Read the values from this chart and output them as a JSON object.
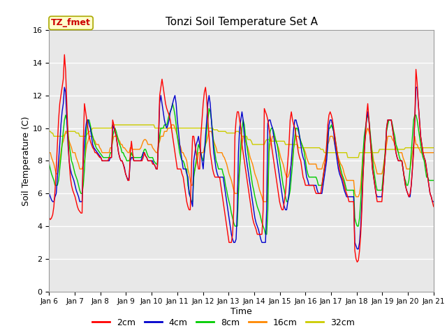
{
  "title": "Tonzi Soil Temperature Set A",
  "xlabel": "Time",
  "ylabel": "Soil Temperature (C)",
  "ylim": [
    0,
    16
  ],
  "yticks": [
    0,
    2,
    4,
    6,
    8,
    10,
    12,
    14,
    16
  ],
  "annotation_label": "TZ_fmet",
  "annotation_color": "#cc0000",
  "annotation_bg": "#ffffcc",
  "annotation_border": "#aaa800",
  "colors": {
    "2cm": "#ff0000",
    "4cm": "#0000cc",
    "8cm": "#00cc00",
    "16cm": "#ff8800",
    "32cm": "#cccc00"
  },
  "bg_color": "#e8e8e8",
  "x_tick_labels": [
    "Jan 6",
    "Jan 7",
    "Jan 8",
    "Jan 9",
    "Jan 10",
    "Jan 11",
    "Jan 12",
    "Jan 13",
    "Jan 14",
    "Jan 15",
    "Jan 16",
    "Jan 17",
    "Jan 18",
    "Jan 19",
    "Jan 20",
    "Jan 21"
  ],
  "series": {
    "2cm": [
      4.5,
      4.4,
      4.5,
      4.7,
      5.2,
      6.2,
      7.5,
      9.0,
      10.5,
      11.5,
      12.0,
      12.5,
      13.0,
      14.5,
      13.5,
      11.5,
      9.5,
      8.0,
      7.0,
      6.5,
      6.2,
      6.0,
      5.8,
      5.5,
      5.2,
      5.0,
      4.9,
      4.8,
      4.8,
      9.0,
      11.5,
      11.0,
      10.5,
      10.0,
      9.5,
      9.2,
      9.0,
      8.8,
      8.7,
      8.5,
      8.5,
      8.4,
      8.3,
      8.2,
      8.2,
      8.0,
      8.0,
      8.0,
      8.0,
      8.0,
      8.0,
      8.2,
      8.2,
      8.2,
      10.5,
      10.2,
      9.8,
      9.5,
      9.0,
      8.5,
      8.2,
      8.0,
      8.0,
      7.8,
      7.5,
      7.2,
      7.0,
      6.8,
      6.8,
      8.5,
      9.2,
      8.5,
      8.0,
      8.0,
      8.0,
      8.0,
      8.0,
      8.0,
      8.0,
      8.0,
      8.2,
      8.5,
      8.3,
      8.2,
      8.0,
      8.0,
      8.0,
      8.0,
      7.8,
      7.8,
      7.7,
      7.5,
      7.5,
      9.5,
      12.0,
      12.5,
      13.0,
      12.5,
      12.0,
      11.5,
      11.2,
      11.0,
      10.8,
      10.5,
      10.0,
      9.5,
      9.0,
      8.5,
      8.0,
      7.5,
      7.5,
      7.5,
      7.5,
      7.2,
      7.0,
      6.5,
      6.0,
      5.5,
      5.2,
      5.0,
      5.0,
      7.5,
      9.5,
      9.5,
      9.0,
      8.5,
      8.0,
      7.5,
      7.5,
      9.5,
      10.5,
      11.5,
      12.2,
      12.5,
      11.8,
      10.5,
      9.5,
      8.5,
      8.0,
      7.5,
      7.2,
      7.0,
      7.0,
      7.0,
      7.0,
      7.0,
      6.5,
      6.0,
      5.5,
      5.0,
      4.5,
      4.0,
      3.5,
      3.0,
      3.0,
      3.0,
      3.5,
      5.0,
      9.5,
      10.5,
      11.0,
      11.0,
      10.5,
      10.0,
      9.0,
      8.5,
      8.0,
      7.5,
      7.0,
      6.5,
      6.0,
      5.5,
      5.0,
      4.5,
      4.2,
      4.0,
      3.8,
      3.5,
      3.5,
      3.5,
      3.5,
      3.5,
      5.0,
      11.2,
      11.0,
      10.8,
      10.5,
      10.0,
      9.5,
      9.0,
      8.5,
      8.0,
      7.5,
      7.0,
      6.5,
      6.0,
      5.5,
      5.2,
      5.0,
      5.0,
      5.5,
      6.0,
      7.0,
      8.0,
      9.0,
      10.5,
      11.0,
      10.5,
      10.2,
      10.0,
      9.5,
      9.0,
      8.5,
      8.2,
      8.0,
      7.5,
      7.0,
      6.8,
      6.5,
      6.5,
      6.5,
      6.5,
      6.5,
      6.5,
      6.5,
      6.5,
      6.2,
      6.0,
      6.0,
      6.0,
      6.0,
      6.0,
      6.5,
      7.0,
      7.5,
      8.0,
      9.0,
      10.2,
      10.8,
      11.0,
      10.8,
      10.5,
      10.0,
      9.5,
      9.0,
      8.5,
      8.0,
      7.5,
      7.2,
      7.0,
      6.8,
      6.5,
      6.2,
      6.0,
      5.8,
      5.5,
      5.5,
      5.5,
      5.5,
      5.5,
      2.5,
      2.0,
      1.8,
      1.9,
      2.5,
      3.5,
      5.0,
      7.0,
      8.5,
      9.5,
      10.8,
      11.5,
      10.5,
      9.5,
      8.5,
      7.5,
      7.0,
      6.5,
      6.0,
      5.5,
      5.5,
      5.5,
      5.5,
      5.5,
      6.5,
      7.5,
      8.5,
      10.0,
      10.5,
      10.5,
      10.5,
      10.5,
      10.0,
      9.5,
      9.0,
      8.5,
      8.2,
      8.0,
      8.0,
      8.0,
      8.0,
      7.5,
      7.0,
      6.5,
      6.2,
      6.0,
      5.8,
      6.0,
      6.5,
      7.5,
      8.5,
      10.5,
      13.6,
      12.8,
      11.5,
      10.5,
      9.5,
      9.0,
      8.5,
      8.2,
      8.0,
      7.5,
      7.0,
      6.5,
      6.0,
      5.8,
      5.5,
      5.2
    ],
    "4cm": [
      6.0,
      5.8,
      5.6,
      5.5,
      5.5,
      5.8,
      6.0,
      7.0,
      8.0,
      9.0,
      10.2,
      11.0,
      11.5,
      12.5,
      12.2,
      10.5,
      9.0,
      8.0,
      7.5,
      7.2,
      7.0,
      6.8,
      6.5,
      6.2,
      6.0,
      5.8,
      5.5,
      5.5,
      5.5,
      8.0,
      9.0,
      10.0,
      10.5,
      10.5,
      10.2,
      10.0,
      9.5,
      9.0,
      8.8,
      8.7,
      8.6,
      8.5,
      8.4,
      8.3,
      8.2,
      8.0,
      8.0,
      8.0,
      8.0,
      8.0,
      8.0,
      8.0,
      8.2,
      8.2,
      10.2,
      10.0,
      9.8,
      9.5,
      9.0,
      8.5,
      8.2,
      8.0,
      8.0,
      7.8,
      7.6,
      7.2,
      7.0,
      6.8,
      7.0,
      8.0,
      8.2,
      8.2,
      8.0,
      8.0,
      8.0,
      8.0,
      8.0,
      8.0,
      8.0,
      8.2,
      8.5,
      8.5,
      8.3,
      8.2,
      8.0,
      8.0,
      8.0,
      8.0,
      8.0,
      7.8,
      7.7,
      7.5,
      7.5,
      9.2,
      11.5,
      12.0,
      11.5,
      11.0,
      10.5,
      10.2,
      10.0,
      10.2,
      10.5,
      11.0,
      11.2,
      11.5,
      11.8,
      12.0,
      11.5,
      10.5,
      9.8,
      9.0,
      8.5,
      8.0,
      7.5,
      7.5,
      7.5,
      7.2,
      7.0,
      6.0,
      5.8,
      5.5,
      5.2,
      8.0,
      8.5,
      9.0,
      9.2,
      9.5,
      9.0,
      8.5,
      8.0,
      7.5,
      8.5,
      9.5,
      10.5,
      11.5,
      12.0,
      11.5,
      10.5,
      9.5,
      8.5,
      8.0,
      7.5,
      7.2,
      7.0,
      7.0,
      7.0,
      7.0,
      7.0,
      6.5,
      6.0,
      5.5,
      5.0,
      4.5,
      4.0,
      3.5,
      3.2,
      3.0,
      3.0,
      3.2,
      5.0,
      8.5,
      10.0,
      10.5,
      11.0,
      10.5,
      9.5,
      8.5,
      8.0,
      7.5,
      7.0,
      6.5,
      6.0,
      5.5,
      5.0,
      4.5,
      4.2,
      4.0,
      3.8,
      3.5,
      3.2,
      3.0,
      3.0,
      3.0,
      3.0,
      5.0,
      10.3,
      10.5,
      10.5,
      10.2,
      10.0,
      9.5,
      9.0,
      8.5,
      8.0,
      7.5,
      7.0,
      6.5,
      6.0,
      5.5,
      5.2,
      5.0,
      5.0,
      5.5,
      6.0,
      7.0,
      8.0,
      9.0,
      10.0,
      10.5,
      10.5,
      10.2,
      10.0,
      9.5,
      9.0,
      8.5,
      8.2,
      8.0,
      7.5,
      7.0,
      6.8,
      6.5,
      6.5,
      6.5,
      6.5,
      6.5,
      6.5,
      6.5,
      6.2,
      6.0,
      6.0,
      6.0,
      6.0,
      6.5,
      7.0,
      7.5,
      8.0,
      9.0,
      10.2,
      10.5,
      10.5,
      10.2,
      9.8,
      9.0,
      8.5,
      8.0,
      7.5,
      7.2,
      7.0,
      6.8,
      6.5,
      6.2,
      6.0,
      5.8,
      5.8,
      5.8,
      5.8,
      5.8,
      5.8,
      5.8,
      3.0,
      2.8,
      2.6,
      2.6,
      3.0,
      4.0,
      5.5,
      7.2,
      8.5,
      9.8,
      10.5,
      11.0,
      10.5,
      9.5,
      8.5,
      7.5,
      7.0,
      6.5,
      6.0,
      5.8,
      5.8,
      5.8,
      5.8,
      5.8,
      6.5,
      7.5,
      8.5,
      10.0,
      10.5,
      10.5,
      10.5,
      10.5,
      10.0,
      9.5,
      9.0,
      8.5,
      8.2,
      8.0,
      8.0,
      8.0,
      8.0,
      7.5,
      7.0,
      6.5,
      6.2,
      6.0,
      5.8,
      5.8,
      6.5,
      7.5,
      8.8,
      10.5,
      12.5,
      12.5,
      11.5,
      10.5,
      9.5,
      9.0,
      8.5,
      8.2,
      8.0,
      7.5,
      7.0,
      6.5,
      6.0,
      5.8,
      5.5,
      5.5
    ],
    "8cm": [
      7.8,
      7.5,
      7.2,
      7.0,
      6.8,
      6.5,
      6.5,
      6.5,
      6.8,
      7.5,
      8.2,
      9.0,
      9.8,
      10.5,
      10.8,
      10.5,
      9.8,
      9.0,
      8.5,
      8.0,
      7.8,
      7.5,
      7.2,
      7.0,
      6.8,
      6.5,
      6.2,
      6.0,
      6.0,
      6.5,
      7.5,
      9.0,
      10.0,
      10.5,
      10.5,
      10.2,
      9.8,
      9.5,
      9.2,
      9.0,
      8.8,
      8.7,
      8.6,
      8.5,
      8.4,
      8.3,
      8.2,
      8.2,
      8.2,
      8.2,
      8.2,
      8.2,
      8.5,
      8.5,
      9.5,
      9.8,
      10.0,
      9.8,
      9.5,
      9.2,
      9.0,
      8.8,
      8.5,
      8.5,
      8.3,
      8.2,
      8.0,
      8.0,
      8.0,
      8.2,
      8.5,
      8.3,
      8.2,
      8.2,
      8.2,
      8.2,
      8.2,
      8.2,
      8.2,
      8.3,
      8.5,
      8.7,
      8.7,
      8.5,
      8.3,
      8.2,
      8.2,
      8.2,
      8.2,
      8.0,
      7.9,
      7.8,
      7.8,
      9.0,
      9.5,
      10.0,
      10.0,
      10.0,
      10.2,
      10.2,
      10.2,
      10.5,
      10.8,
      11.0,
      11.2,
      11.5,
      11.2,
      10.8,
      10.2,
      9.5,
      9.0,
      8.5,
      8.2,
      8.0,
      8.0,
      7.8,
      7.5,
      7.5,
      6.5,
      6.2,
      5.8,
      5.5,
      5.5,
      7.0,
      7.5,
      8.0,
      8.5,
      9.0,
      8.8,
      8.5,
      8.2,
      8.0,
      8.5,
      9.0,
      9.8,
      10.5,
      11.2,
      11.0,
      10.5,
      9.8,
      9.0,
      8.5,
      8.0,
      7.8,
      7.5,
      7.5,
      7.5,
      7.5,
      7.2,
      7.0,
      6.5,
      6.2,
      5.8,
      5.5,
      5.2,
      4.8,
      4.5,
      4.2,
      4.0,
      4.0,
      4.0,
      6.0,
      7.5,
      9.0,
      10.0,
      10.5,
      10.2,
      9.5,
      9.0,
      8.5,
      8.0,
      7.5,
      7.0,
      6.5,
      6.2,
      5.8,
      5.5,
      5.2,
      5.0,
      4.8,
      4.5,
      4.2,
      4.0,
      3.8,
      3.5,
      3.5,
      5.0,
      9.0,
      9.8,
      10.0,
      10.0,
      9.8,
      9.5,
      9.2,
      9.0,
      8.5,
      8.0,
      7.5,
      7.0,
      6.5,
      6.2,
      5.8,
      5.5,
      5.5,
      5.8,
      6.2,
      7.0,
      7.8,
      8.8,
      9.5,
      10.0,
      10.0,
      9.8,
      9.5,
      9.2,
      9.0,
      8.8,
      8.5,
      8.0,
      7.5,
      7.2,
      7.0,
      7.0,
      7.0,
      7.0,
      7.0,
      7.0,
      7.0,
      6.8,
      6.5,
      6.5,
      6.5,
      6.5,
      7.0,
      7.5,
      8.0,
      8.5,
      9.5,
      10.0,
      10.0,
      10.2,
      10.0,
      9.8,
      9.5,
      9.0,
      8.5,
      8.0,
      7.8,
      7.5,
      7.2,
      7.0,
      6.8,
      6.5,
      6.2,
      6.2,
      6.2,
      6.2,
      6.2,
      6.2,
      6.2,
      4.5,
      4.2,
      4.0,
      4.0,
      4.5,
      5.5,
      7.0,
      8.5,
      9.5,
      10.0,
      10.5,
      10.8,
      10.5,
      9.8,
      9.0,
      8.2,
      7.5,
      7.0,
      6.5,
      6.2,
      6.2,
      6.2,
      6.2,
      6.2,
      7.0,
      7.8,
      8.8,
      9.8,
      10.2,
      10.5,
      10.5,
      10.5,
      10.2,
      9.8,
      9.5,
      9.0,
      8.8,
      8.5,
      8.2,
      8.0,
      8.0,
      7.5,
      7.0,
      6.8,
      6.5,
      6.5,
      6.8,
      7.5,
      8.5,
      9.5,
      10.5,
      10.8,
      10.8,
      10.5,
      10.0,
      9.5,
      9.0,
      8.5,
      8.2,
      8.0,
      7.5,
      7.0,
      7.0,
      6.8,
      6.8,
      6.8,
      6.8,
      6.8
    ],
    "16cm": [
      8.5,
      8.5,
      8.2,
      8.0,
      7.8,
      7.5,
      7.2,
      7.2,
      7.5,
      8.0,
      8.5,
      9.0,
      9.2,
      9.5,
      9.8,
      9.8,
      9.5,
      9.2,
      9.0,
      8.8,
      8.5,
      8.5,
      8.5,
      8.2,
      8.0,
      7.8,
      7.5,
      7.5,
      7.5,
      7.8,
      8.0,
      8.5,
      9.0,
      9.2,
      9.5,
      9.5,
      9.5,
      9.5,
      9.3,
      9.2,
      9.0,
      9.0,
      9.0,
      8.8,
      8.7,
      8.5,
      8.5,
      8.5,
      8.5,
      8.5,
      8.5,
      8.5,
      8.8,
      8.8,
      9.2,
      9.5,
      9.5,
      9.5,
      9.5,
      9.3,
      9.2,
      9.0,
      9.0,
      8.8,
      8.8,
      8.7,
      8.6,
      8.5,
      8.5,
      8.8,
      8.8,
      8.7,
      8.7,
      8.7,
      8.7,
      8.7,
      8.7,
      8.7,
      8.8,
      9.0,
      9.2,
      9.3,
      9.3,
      9.2,
      9.0,
      9.0,
      9.0,
      9.0,
      8.8,
      8.7,
      8.6,
      8.5,
      8.5,
      9.0,
      9.2,
      9.5,
      9.5,
      9.5,
      9.8,
      9.8,
      9.8,
      10.0,
      10.0,
      10.0,
      10.2,
      10.2,
      10.2,
      10.0,
      9.8,
      9.5,
      9.2,
      9.0,
      8.8,
      8.5,
      8.5,
      8.3,
      8.2,
      8.0,
      7.5,
      7.2,
      6.8,
      6.5,
      6.5,
      7.2,
      7.5,
      7.8,
      8.0,
      8.5,
      8.5,
      8.5,
      8.5,
      8.5,
      8.8,
      9.0,
      9.2,
      9.5,
      9.8,
      9.8,
      9.8,
      9.5,
      9.2,
      9.0,
      8.8,
      8.5,
      8.5,
      8.5,
      8.5,
      8.5,
      8.3,
      8.2,
      8.0,
      7.8,
      7.5,
      7.2,
      7.0,
      6.8,
      6.5,
      6.2,
      6.0,
      6.0,
      6.0,
      7.0,
      7.5,
      8.5,
      9.0,
      9.5,
      9.5,
      9.2,
      9.0,
      8.8,
      8.5,
      8.2,
      8.0,
      7.8,
      7.5,
      7.2,
      7.0,
      6.8,
      6.5,
      6.2,
      6.0,
      5.8,
      5.5,
      5.5,
      5.5,
      5.5,
      6.5,
      8.5,
      9.0,
      9.2,
      9.5,
      9.5,
      9.3,
      9.2,
      9.0,
      8.8,
      8.5,
      8.2,
      8.0,
      7.8,
      7.5,
      7.2,
      7.0,
      7.0,
      7.2,
      7.5,
      7.8,
      8.2,
      8.8,
      9.2,
      9.5,
      9.5,
      9.5,
      9.3,
      9.2,
      9.0,
      8.8,
      8.7,
      8.5,
      8.2,
      8.0,
      7.8,
      7.8,
      7.8,
      7.8,
      7.8,
      7.8,
      7.8,
      7.5,
      7.5,
      7.5,
      7.5,
      7.5,
      7.8,
      8.0,
      8.3,
      8.5,
      9.0,
      9.2,
      9.5,
      9.5,
      9.5,
      9.3,
      9.0,
      8.8,
      8.5,
      8.2,
      8.0,
      7.8,
      7.7,
      7.5,
      7.2,
      7.0,
      6.8,
      6.8,
      6.8,
      6.8,
      6.8,
      6.8,
      6.8,
      6.0,
      5.8,
      5.8,
      5.8,
      6.0,
      6.5,
      7.5,
      8.5,
      9.0,
      9.5,
      9.8,
      10.0,
      9.8,
      9.5,
      9.0,
      8.5,
      8.0,
      7.8,
      7.5,
      7.2,
      7.2,
      7.2,
      7.2,
      7.2,
      7.5,
      8.0,
      8.5,
      9.0,
      9.5,
      9.5,
      9.5,
      9.5,
      9.3,
      9.2,
      9.0,
      8.8,
      8.7,
      8.5,
      8.5,
      8.5,
      8.5,
      8.2,
      8.0,
      7.8,
      7.5,
      7.5,
      7.5,
      7.5,
      8.0,
      8.5,
      9.0,
      9.5,
      9.0,
      9.0,
      8.8,
      8.7,
      8.5,
      8.5,
      8.5,
      8.5,
      8.5,
      8.5,
      8.5,
      8.5,
      8.5,
      8.5,
      8.5,
      8.5
    ],
    "32cm": [
      9.8,
      9.8,
      9.7,
      9.7,
      9.5,
      9.5,
      9.5,
      9.5,
      9.5,
      9.5,
      9.5,
      9.5,
      9.5,
      9.6,
      9.7,
      9.7,
      9.8,
      9.8,
      9.8,
      9.8,
      9.8,
      9.8,
      9.8,
      9.7,
      9.7,
      9.7,
      9.5,
      9.5,
      9.5,
      9.5,
      9.5,
      9.5,
      9.6,
      9.7,
      9.8,
      9.8,
      9.9,
      10.0,
      10.0,
      10.0,
      10.0,
      10.0,
      10.0,
      10.0,
      10.0,
      10.0,
      10.0,
      10.0,
      10.0,
      10.0,
      10.0,
      10.0,
      10.0,
      10.0,
      10.2,
      10.2,
      10.2,
      10.2,
      10.2,
      10.2,
      10.2,
      10.2,
      10.2,
      10.2,
      10.2,
      10.2,
      10.2,
      10.2,
      10.2,
      10.2,
      10.2,
      10.2,
      10.2,
      10.2,
      10.2,
      10.2,
      10.2,
      10.2,
      10.2,
      10.2,
      10.2,
      10.2,
      10.2,
      10.2,
      10.2,
      10.2,
      10.2,
      10.2,
      10.2,
      10.2,
      10.0,
      10.0,
      10.0,
      10.0,
      10.0,
      10.0,
      10.0,
      10.0,
      10.0,
      10.0,
      10.0,
      10.0,
      10.0,
      10.0,
      10.0,
      10.0,
      10.0,
      10.0,
      10.0,
      10.0,
      10.0,
      10.0,
      10.0,
      10.0,
      10.0,
      10.0,
      10.0,
      10.0,
      10.0,
      10.0,
      10.0,
      10.0,
      10.0,
      10.0,
      10.0,
      10.0,
      10.0,
      10.0,
      10.0,
      10.0,
      10.0,
      10.0,
      10.0,
      10.0,
      10.0,
      10.0,
      10.0,
      10.0,
      10.0,
      10.0,
      9.9,
      9.9,
      9.9,
      9.9,
      9.8,
      9.8,
      9.8,
      9.8,
      9.8,
      9.8,
      9.8,
      9.7,
      9.7,
      9.7,
      9.7,
      9.7,
      9.7,
      9.7,
      9.7,
      9.8,
      9.8,
      9.8,
      9.7,
      9.7,
      9.5,
      9.5,
      9.5,
      9.5,
      9.5,
      9.3,
      9.3,
      9.3,
      9.2,
      9.0,
      9.0,
      9.0,
      9.0,
      9.0,
      9.0,
      9.0,
      9.0,
      9.0,
      9.0,
      9.0,
      9.2,
      9.3,
      9.3,
      9.3,
      9.2,
      9.2,
      9.2,
      9.2,
      9.2,
      9.2,
      9.2,
      9.2,
      9.2,
      9.2,
      9.2,
      9.2,
      9.2,
      9.0,
      9.0,
      9.0,
      9.0,
      9.0,
      9.0,
      9.0,
      9.0,
      9.0,
      9.0,
      9.0,
      8.8,
      8.8,
      8.8,
      8.8,
      8.8,
      8.8,
      8.8,
      8.8,
      8.8,
      8.8,
      8.8,
      8.8,
      8.8,
      8.8,
      8.8,
      8.8,
      8.8,
      8.8,
      8.8,
      8.7,
      8.7,
      8.7,
      8.5,
      8.5,
      8.5,
      8.5,
      8.5,
      8.5,
      8.5,
      8.5,
      8.5,
      8.5,
      8.5,
      8.5,
      8.5,
      8.5,
      8.5,
      8.5,
      8.5,
      8.5,
      8.5,
      8.5,
      8.2,
      8.2,
      8.2,
      8.2,
      8.2,
      8.2,
      8.2,
      8.2,
      8.2,
      8.2,
      8.5,
      8.5,
      8.5,
      8.5,
      8.5,
      8.5,
      8.5,
      8.5,
      8.5,
      8.5,
      8.5,
      8.5,
      8.5,
      8.5,
      8.5,
      8.5,
      8.5,
      8.7,
      8.7,
      8.7,
      8.7,
      8.7,
      8.7,
      8.7,
      8.7,
      8.7,
      8.7,
      8.7,
      8.7,
      8.7,
      8.7,
      8.7,
      8.7,
      8.7,
      8.7,
      8.7,
      8.7,
      8.7,
      8.7,
      8.8,
      8.8,
      8.8,
      8.8,
      8.8,
      8.8,
      8.8,
      8.8,
      8.8,
      8.8,
      8.8,
      8.8,
      8.8,
      8.8,
      8.8,
      8.8,
      8.8,
      8.8,
      8.8,
      8.8,
      8.8,
      8.8,
      8.8,
      8.8,
      8.8
    ]
  }
}
